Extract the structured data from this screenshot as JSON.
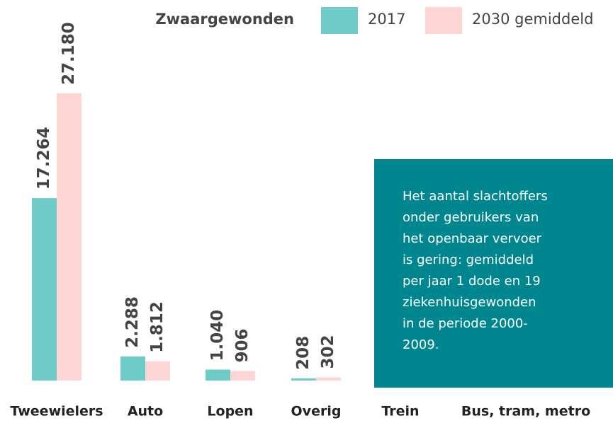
{
  "chart_data": {
    "type": "bar",
    "legend_title": "Zwaargewonden",
    "categories": [
      "Tweewielers",
      "Auto",
      "Lopen",
      "Overig",
      "Trein",
      "Bus, tram, metro"
    ],
    "series": [
      {
        "name": "2017",
        "color": "#6ecbc8",
        "values": [
          17264,
          2288,
          1040,
          208,
          null,
          null
        ],
        "value_labels": [
          "17.264",
          "2.288",
          "1.040",
          "208",
          null,
          null
        ]
      },
      {
        "name": "2030 gemiddeld",
        "color": "#fdd5d5",
        "values": [
          27180,
          1812,
          906,
          302,
          null,
          null
        ],
        "value_labels": [
          "27.180",
          "1.812",
          "906",
          "302",
          null,
          null
        ]
      }
    ],
    "annotation": [
      "Het aantal slachtoffers",
      "onder gebruikers van",
      "het openbaar vervoer",
      "is gering: gemiddeld",
      "per jaar 1 dode en 19",
      "ziekenhuisgewonden",
      "in de periode 2000-",
      "2009."
    ],
    "annotation_color": "#00868f"
  }
}
